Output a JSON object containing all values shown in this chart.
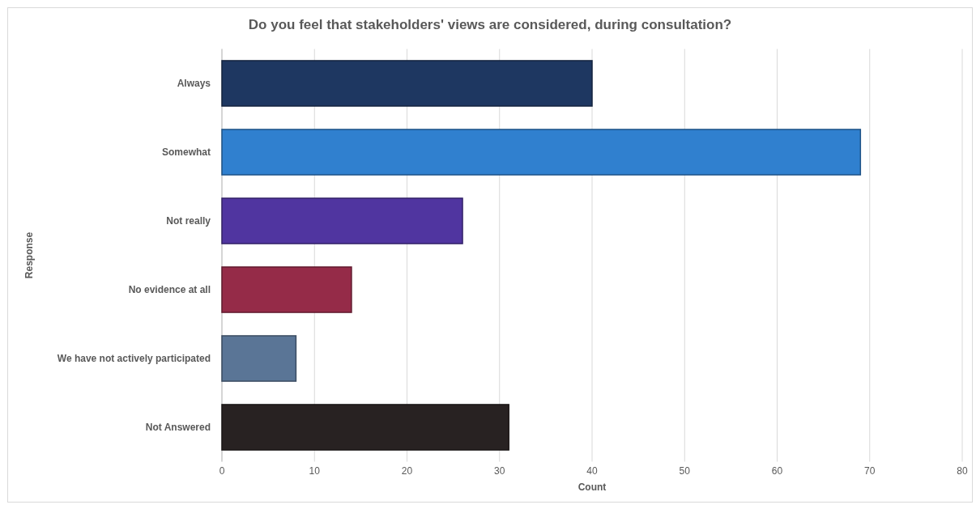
{
  "chart_data": {
    "type": "bar",
    "orientation": "horizontal",
    "title": "Do you feel that stakeholders' views are considered, during consultation?",
    "xlabel": "Count",
    "ylabel": "Response",
    "categories": [
      "Always",
      "Somewhat",
      "Not really",
      "No evidence at all",
      "We have not actively participated",
      "Not Answered"
    ],
    "values": [
      40,
      69,
      26,
      14,
      8,
      31
    ],
    "colors": [
      "#1e3761",
      "#3080cf",
      "#5035a0",
      "#952b48",
      "#5a7596",
      "#282222"
    ],
    "xlim": [
      0,
      80
    ],
    "xticks": [
      0,
      10,
      20,
      30,
      40,
      50,
      60,
      70,
      80
    ],
    "grid": "x"
  }
}
